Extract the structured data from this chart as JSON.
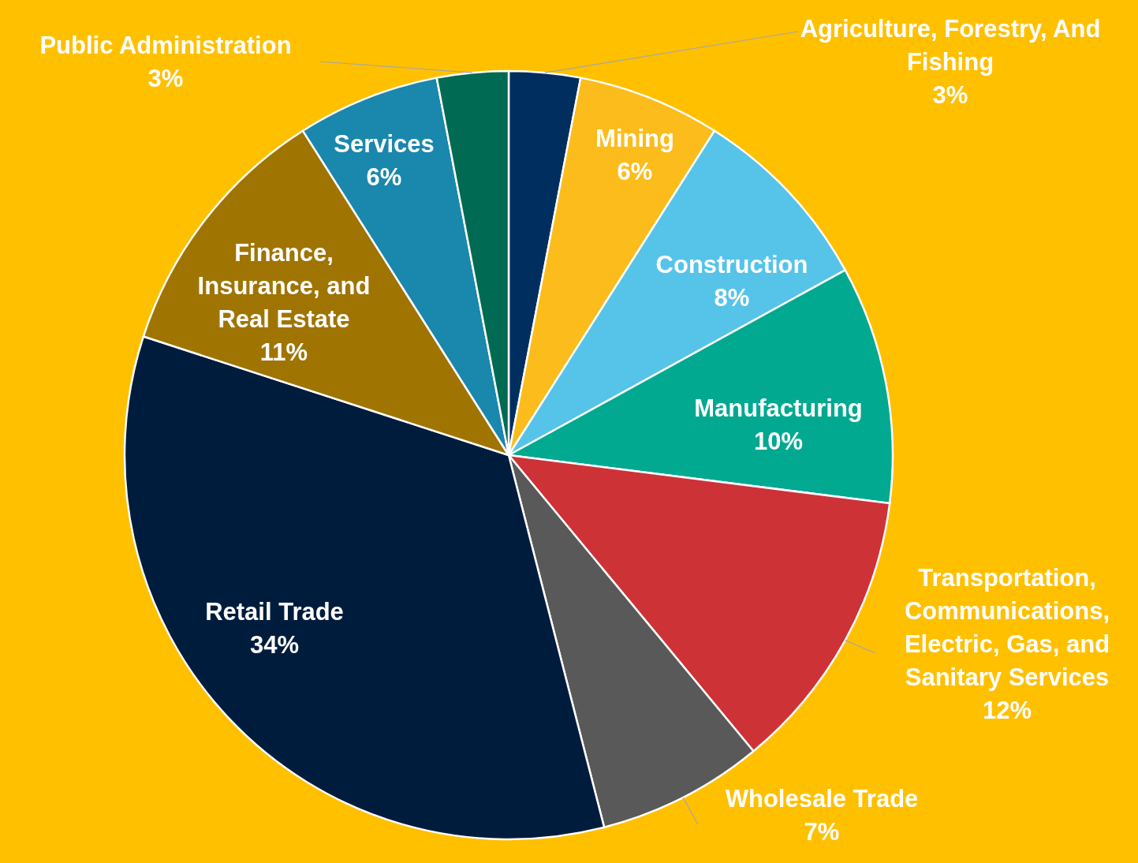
{
  "chart_data": {
    "type": "pie",
    "categories": [
      "Agriculture, Forestry, And Fishing",
      "Mining",
      "Construction",
      "Manufacturing",
      "Transportation, Communications, Electric, Gas, and Sanitary Services",
      "Wholesale Trade",
      "Retail Trade",
      "Finance, Insurance, and Real Estate",
      "Services",
      "Public Administration"
    ],
    "values": [
      3,
      6,
      8,
      10,
      12,
      7,
      34,
      11,
      6,
      3
    ],
    "value_labels": [
      "3%",
      "6%",
      "8%",
      "10%",
      "12%",
      "7%",
      "34%",
      "11%",
      "6%",
      "3%"
    ],
    "colors": [
      "#002e5f",
      "#fbbc1c",
      "#56c3e9",
      "#00a98f",
      "#cd3237",
      "#595959",
      "#001c3d",
      "#a07400",
      "#1a87ad",
      "#006a52"
    ]
  }
}
